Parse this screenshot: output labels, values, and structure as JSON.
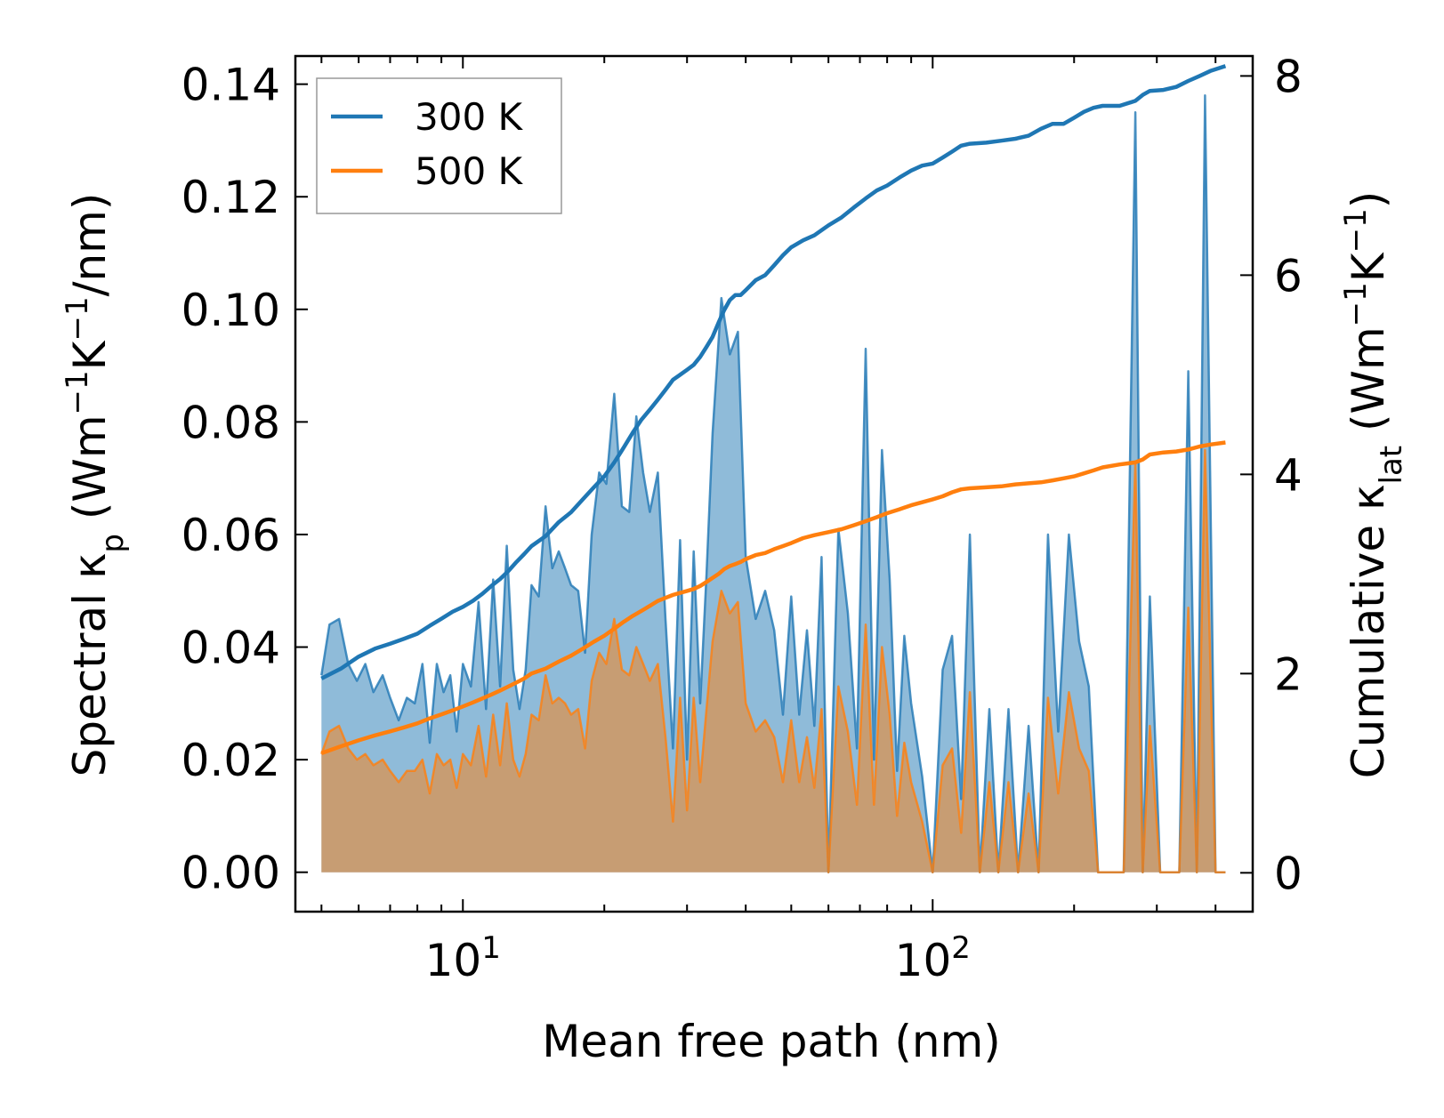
{
  "chart_data": {
    "type": "line",
    "xlabel": "Mean free path (nm)",
    "ylabel_left": {
      "main": "Spectral κ",
      "sub": "p",
      "unit_open": " (Wm",
      "sup1": "−1",
      "mid": "K",
      "sup2": "−1",
      "unit_close": "/nm)"
    },
    "ylabel_right": {
      "main": "Cumulative κ",
      "sub": "lat",
      "unit_open": " (Wm",
      "sup1": "−1",
      "mid": "K",
      "sup2": "−1",
      "unit_close": ")"
    },
    "xscale": "log",
    "xlim": [
      4.4,
      480
    ],
    "ylim_left": [
      -0.007,
      0.145
    ],
    "ylim_right": [
      -0.39,
      8.2
    ],
    "x_tick_labels": [
      {
        "base": "10",
        "exp": "1",
        "value": 10
      },
      {
        "base": "10",
        "exp": "2",
        "value": 100
      }
    ],
    "y_left_ticks": [
      0.0,
      0.02,
      0.04,
      0.06,
      0.08,
      0.1,
      0.12,
      0.14
    ],
    "y_left_tick_labels": [
      "0.00",
      "0.02",
      "0.04",
      "0.06",
      "0.08",
      "0.10",
      "0.12",
      "0.14"
    ],
    "y_right_ticks": [
      0,
      2,
      4,
      6,
      8
    ],
    "y_right_tick_labels": [
      "0",
      "2",
      "4",
      "6",
      "8"
    ],
    "legend": {
      "position": "upper-left",
      "entries": [
        "300 K",
        "500 K"
      ]
    },
    "colors": {
      "300 K": "#1f77b4",
      "500 K": "#ff7f0e",
      "fill_300": "#1f77b4",
      "fill_500": "#ff7f0e"
    },
    "spectral_series": [
      {
        "name": "300 K",
        "x": [
          5.0,
          5.2,
          5.45,
          5.7,
          5.95,
          6.2,
          6.45,
          6.75,
          7.0,
          7.3,
          7.6,
          7.9,
          8.2,
          8.5,
          8.8,
          9.1,
          9.4,
          9.7,
          10.0,
          10.4,
          10.8,
          11.2,
          11.6,
          12.0,
          12.4,
          12.8,
          13.2,
          13.6,
          14.0,
          14.5,
          15.0,
          15.5,
          16.0,
          16.5,
          17.0,
          17.6,
          18.2,
          18.8,
          19.5,
          20.2,
          21.0,
          21.8,
          22.6,
          23.4,
          24.2,
          25.0,
          26.0,
          27.0,
          28.0,
          29.0,
          30.0,
          31.0,
          32.0,
          33.0,
          34.0,
          35.5,
          37.0,
          38.5,
          40.0,
          42.0,
          44.0,
          46.0,
          48.0,
          50.0,
          52.0,
          54.0,
          56.0,
          58.0,
          60.0,
          63.0,
          66.0,
          69.0,
          72.0,
          75.0,
          78.0,
          81.0,
          84.0,
          87.0,
          90.0,
          95.0,
          100.0,
          105.0,
          110.0,
          115.0,
          120.0,
          126.0,
          132.0,
          138.0,
          145.0,
          152.0,
          160.0,
          168.0,
          176.0,
          185.0,
          195.0,
          205.0,
          215.0,
          225.0,
          240.0,
          255.0,
          270.0,
          280.0,
          290.0,
          305.0,
          320.0,
          335.0,
          350.0,
          365.0,
          380.0,
          400.0,
          420.0
        ],
        "values": [
          0.035,
          0.044,
          0.045,
          0.037,
          0.034,
          0.037,
          0.032,
          0.035,
          0.031,
          0.027,
          0.031,
          0.03,
          0.037,
          0.023,
          0.037,
          0.032,
          0.035,
          0.025,
          0.037,
          0.033,
          0.048,
          0.029,
          0.052,
          0.033,
          0.058,
          0.036,
          0.029,
          0.036,
          0.051,
          0.049,
          0.065,
          0.054,
          0.057,
          0.054,
          0.051,
          0.05,
          0.039,
          0.06,
          0.071,
          0.069,
          0.085,
          0.065,
          0.064,
          0.081,
          0.071,
          0.064,
          0.071,
          0.045,
          0.022,
          0.059,
          0.02,
          0.057,
          0.03,
          0.053,
          0.078,
          0.102,
          0.092,
          0.096,
          0.056,
          0.045,
          0.05,
          0.043,
          0.028,
          0.049,
          0.028,
          0.043,
          0.026,
          0.056,
          0.0,
          0.061,
          0.046,
          0.022,
          0.093,
          0.02,
          0.075,
          0.052,
          0.018,
          0.042,
          0.03,
          0.017,
          0.0,
          0.036,
          0.042,
          0.013,
          0.06,
          0.0,
          0.029,
          0.0,
          0.029,
          0.0,
          0.026,
          0.0,
          0.06,
          0.025,
          0.06,
          0.041,
          0.033,
          0.0,
          0.0,
          0.0,
          0.135,
          0.0,
          0.049,
          0.0,
          0.0,
          0.0,
          0.089,
          0.0,
          0.138,
          0.0,
          0.0
        ]
      },
      {
        "name": "500 K",
        "x": [
          5.0,
          5.2,
          5.45,
          5.7,
          5.95,
          6.2,
          6.45,
          6.75,
          7.0,
          7.3,
          7.6,
          7.9,
          8.2,
          8.5,
          8.8,
          9.1,
          9.4,
          9.7,
          10.0,
          10.4,
          10.8,
          11.2,
          11.6,
          12.0,
          12.4,
          12.8,
          13.2,
          13.6,
          14.0,
          14.5,
          15.0,
          15.5,
          16.0,
          16.5,
          17.0,
          17.6,
          18.2,
          18.8,
          19.5,
          20.2,
          21.0,
          21.8,
          22.6,
          23.4,
          24.2,
          25.0,
          26.0,
          27.0,
          28.0,
          29.0,
          30.0,
          31.0,
          32.0,
          33.0,
          34.0,
          35.5,
          37.0,
          38.5,
          40.0,
          42.0,
          44.0,
          46.0,
          48.0,
          50.0,
          52.0,
          54.0,
          56.0,
          58.0,
          60.0,
          63.0,
          66.0,
          69.0,
          72.0,
          75.0,
          78.0,
          81.0,
          84.0,
          87.0,
          90.0,
          95.0,
          100.0,
          105.0,
          110.0,
          115.0,
          120.0,
          126.0,
          132.0,
          138.0,
          145.0,
          152.0,
          160.0,
          168.0,
          176.0,
          185.0,
          195.0,
          205.0,
          215.0,
          225.0,
          240.0,
          255.0,
          270.0,
          280.0,
          290.0,
          305.0,
          320.0,
          335.0,
          350.0,
          365.0,
          380.0,
          400.0,
          420.0
        ],
        "values": [
          0.021,
          0.025,
          0.026,
          0.022,
          0.02,
          0.021,
          0.019,
          0.02,
          0.018,
          0.016,
          0.018,
          0.018,
          0.02,
          0.014,
          0.021,
          0.019,
          0.02,
          0.015,
          0.021,
          0.019,
          0.026,
          0.017,
          0.028,
          0.019,
          0.03,
          0.02,
          0.017,
          0.021,
          0.028,
          0.027,
          0.035,
          0.03,
          0.031,
          0.03,
          0.028,
          0.029,
          0.022,
          0.034,
          0.039,
          0.037,
          0.045,
          0.036,
          0.035,
          0.04,
          0.037,
          0.034,
          0.037,
          0.024,
          0.009,
          0.031,
          0.011,
          0.031,
          0.016,
          0.029,
          0.041,
          0.05,
          0.046,
          0.048,
          0.03,
          0.025,
          0.027,
          0.024,
          0.016,
          0.027,
          0.016,
          0.024,
          0.015,
          0.029,
          0.0,
          0.033,
          0.025,
          0.012,
          0.044,
          0.012,
          0.04,
          0.028,
          0.01,
          0.023,
          0.016,
          0.009,
          0.0,
          0.019,
          0.022,
          0.007,
          0.032,
          0.0,
          0.016,
          0.0,
          0.016,
          0.0,
          0.014,
          0.0,
          0.031,
          0.014,
          0.032,
          0.022,
          0.018,
          0.0,
          0.0,
          0.0,
          0.073,
          0.0,
          0.026,
          0.0,
          0.0,
          0.0,
          0.047,
          0.0,
          0.075,
          0.0,
          0.0
        ]
      }
    ],
    "cumulative_series": [
      {
        "name": "300 K",
        "x": [
          5.0,
          5.5,
          6.0,
          6.5,
          7.0,
          7.5,
          8.0,
          8.5,
          9.0,
          9.5,
          10.0,
          10.5,
          11.0,
          11.5,
          12.0,
          12.5,
          13.0,
          13.5,
          14.0,
          15.0,
          16.0,
          17.0,
          18.0,
          19.0,
          20.0,
          21.0,
          22.0,
          23.0,
          24.0,
          25.0,
          26.0,
          27.0,
          28.0,
          29.0,
          30.0,
          31.0,
          32.0,
          33.0,
          34.0,
          35.0,
          36.0,
          37.0,
          38.0,
          39.0,
          40.0,
          42.0,
          44.0,
          46.0,
          48.0,
          50.0,
          53.0,
          56.0,
          60.0,
          64.0,
          68.0,
          72.0,
          76.0,
          80.0,
          85.0,
          90.0,
          95.0,
          100.0,
          105.0,
          110.0,
          115.0,
          120.0,
          130.0,
          140.0,
          150.0,
          160.0,
          170.0,
          180.0,
          190.0,
          200.0,
          210.0,
          220.0,
          230.0,
          250.0,
          270.0,
          280.0,
          290.0,
          310.0,
          330.0,
          350.0,
          370.0,
          390.0,
          420.0
        ],
        "values": [
          1.95,
          2.05,
          2.17,
          2.25,
          2.3,
          2.35,
          2.4,
          2.48,
          2.55,
          2.62,
          2.67,
          2.73,
          2.8,
          2.88,
          2.95,
          3.03,
          3.12,
          3.2,
          3.28,
          3.38,
          3.52,
          3.62,
          3.75,
          3.87,
          3.98,
          4.12,
          4.27,
          4.42,
          4.55,
          4.65,
          4.75,
          4.85,
          4.95,
          5.0,
          5.05,
          5.1,
          5.18,
          5.28,
          5.38,
          5.52,
          5.65,
          5.75,
          5.8,
          5.8,
          5.85,
          5.95,
          6.0,
          6.1,
          6.2,
          6.28,
          6.35,
          6.4,
          6.5,
          6.58,
          6.68,
          6.77,
          6.85,
          6.9,
          6.98,
          7.05,
          7.1,
          7.12,
          7.18,
          7.24,
          7.3,
          7.32,
          7.33,
          7.35,
          7.37,
          7.4,
          7.47,
          7.52,
          7.52,
          7.58,
          7.64,
          7.68,
          7.7,
          7.7,
          7.75,
          7.81,
          7.85,
          7.86,
          7.89,
          7.95,
          8.0,
          8.05,
          8.1
        ]
      },
      {
        "name": "500 K",
        "x": [
          5.0,
          5.5,
          6.0,
          6.5,
          7.0,
          7.5,
          8.0,
          8.5,
          9.0,
          9.5,
          10.0,
          10.5,
          11.0,
          11.5,
          12.0,
          12.5,
          13.0,
          13.5,
          14.0,
          15.0,
          16.0,
          17.0,
          18.0,
          19.0,
          20.0,
          21.0,
          22.0,
          23.0,
          24.0,
          25.0,
          26.0,
          27.0,
          28.0,
          29.0,
          30.0,
          31.0,
          32.0,
          33.0,
          34.0,
          35.0,
          36.0,
          37.0,
          38.0,
          39.0,
          40.0,
          42.0,
          44.0,
          46.0,
          48.0,
          50.0,
          53.0,
          56.0,
          60.0,
          64.0,
          68.0,
          72.0,
          76.0,
          80.0,
          85.0,
          90.0,
          95.0,
          100.0,
          105.0,
          110.0,
          115.0,
          120.0,
          130.0,
          140.0,
          150.0,
          160.0,
          170.0,
          180.0,
          190.0,
          200.0,
          210.0,
          220.0,
          230.0,
          250.0,
          270.0,
          280.0,
          290.0,
          310.0,
          330.0,
          350.0,
          370.0,
          390.0,
          420.0
        ],
        "values": [
          1.2,
          1.27,
          1.33,
          1.38,
          1.42,
          1.46,
          1.5,
          1.55,
          1.59,
          1.63,
          1.67,
          1.71,
          1.75,
          1.79,
          1.83,
          1.87,
          1.91,
          1.95,
          2.0,
          2.05,
          2.12,
          2.18,
          2.25,
          2.32,
          2.38,
          2.45,
          2.52,
          2.58,
          2.63,
          2.68,
          2.73,
          2.76,
          2.79,
          2.81,
          2.83,
          2.85,
          2.88,
          2.92,
          2.96,
          3.0,
          3.05,
          3.08,
          3.1,
          3.12,
          3.15,
          3.19,
          3.21,
          3.25,
          3.28,
          3.31,
          3.36,
          3.39,
          3.42,
          3.45,
          3.49,
          3.53,
          3.57,
          3.61,
          3.65,
          3.69,
          3.72,
          3.75,
          3.78,
          3.82,
          3.85,
          3.86,
          3.87,
          3.88,
          3.9,
          3.91,
          3.92,
          3.94,
          3.96,
          3.98,
          4.01,
          4.04,
          4.07,
          4.1,
          4.12,
          4.15,
          4.2,
          4.22,
          4.23,
          4.25,
          4.28,
          4.3,
          4.32
        ]
      }
    ]
  }
}
